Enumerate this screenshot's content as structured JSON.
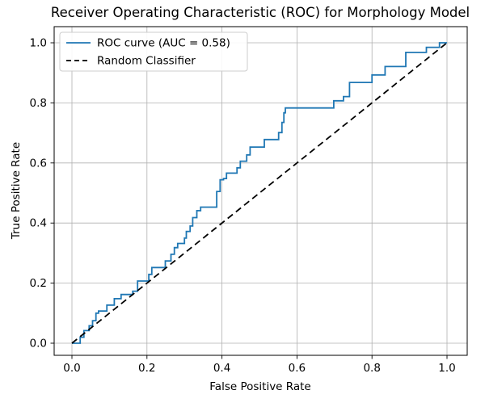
{
  "chart_data": {
    "type": "line",
    "title": "Receiver Operating Characteristic (ROC) for Morphology Model",
    "xlabel": "False Positive Rate",
    "ylabel": "True Positive Rate",
    "x_ticks": [
      "0.0",
      "0.2",
      "0.4",
      "0.6",
      "0.8",
      "1.0"
    ],
    "y_ticks": [
      "0.0",
      "0.2",
      "0.4",
      "0.6",
      "0.8",
      "1.0"
    ],
    "x_tick_values": [
      0.0,
      0.2,
      0.4,
      0.6,
      0.8,
      1.0
    ],
    "y_tick_values": [
      0.0,
      0.2,
      0.4,
      0.6,
      0.8,
      1.0
    ],
    "grid": true,
    "grid_color": "#b0b0b0",
    "auc": 0.58,
    "legend": {
      "position": "upper-left",
      "entries": [
        {
          "label": "ROC curve (AUC = 0.58)",
          "color": "#1f77b4",
          "style": "solid"
        },
        {
          "label": "Random Classifier",
          "color": "#000000",
          "style": "dashed"
        }
      ]
    },
    "series": [
      {
        "name": "ROC curve (AUC = 0.58)",
        "color": "#1f77b4",
        "style": "solid",
        "points": [
          [
            0.0,
            0.0
          ],
          [
            0.022,
            0.0
          ],
          [
            0.022,
            0.02
          ],
          [
            0.032,
            0.02
          ],
          [
            0.032,
            0.042
          ],
          [
            0.046,
            0.042
          ],
          [
            0.046,
            0.058
          ],
          [
            0.055,
            0.058
          ],
          [
            0.055,
            0.075
          ],
          [
            0.064,
            0.075
          ],
          [
            0.064,
            0.1
          ],
          [
            0.071,
            0.1
          ],
          [
            0.071,
            0.107
          ],
          [
            0.093,
            0.107
          ],
          [
            0.093,
            0.127
          ],
          [
            0.113,
            0.127
          ],
          [
            0.113,
            0.148
          ],
          [
            0.131,
            0.148
          ],
          [
            0.131,
            0.162
          ],
          [
            0.162,
            0.162
          ],
          [
            0.162,
            0.173
          ],
          [
            0.175,
            0.173
          ],
          [
            0.175,
            0.207
          ],
          [
            0.205,
            0.207
          ],
          [
            0.205,
            0.229
          ],
          [
            0.213,
            0.229
          ],
          [
            0.213,
            0.252
          ],
          [
            0.249,
            0.252
          ],
          [
            0.249,
            0.274
          ],
          [
            0.264,
            0.274
          ],
          [
            0.264,
            0.296
          ],
          [
            0.273,
            0.296
          ],
          [
            0.273,
            0.318
          ],
          [
            0.282,
            0.318
          ],
          [
            0.282,
            0.332
          ],
          [
            0.3,
            0.332
          ],
          [
            0.3,
            0.35
          ],
          [
            0.305,
            0.35
          ],
          [
            0.305,
            0.372
          ],
          [
            0.315,
            0.372
          ],
          [
            0.315,
            0.39
          ],
          [
            0.322,
            0.39
          ],
          [
            0.322,
            0.418
          ],
          [
            0.333,
            0.418
          ],
          [
            0.333,
            0.441
          ],
          [
            0.343,
            0.441
          ],
          [
            0.343,
            0.453
          ],
          [
            0.386,
            0.453
          ],
          [
            0.386,
            0.505
          ],
          [
            0.395,
            0.505
          ],
          [
            0.395,
            0.544
          ],
          [
            0.404,
            0.544
          ],
          [
            0.404,
            0.548
          ],
          [
            0.412,
            0.548
          ],
          [
            0.412,
            0.566
          ],
          [
            0.44,
            0.566
          ],
          [
            0.44,
            0.584
          ],
          [
            0.449,
            0.584
          ],
          [
            0.449,
            0.606
          ],
          [
            0.466,
            0.606
          ],
          [
            0.466,
            0.627
          ],
          [
            0.475,
            0.627
          ],
          [
            0.475,
            0.653
          ],
          [
            0.513,
            0.653
          ],
          [
            0.513,
            0.678
          ],
          [
            0.551,
            0.678
          ],
          [
            0.551,
            0.701
          ],
          [
            0.56,
            0.701
          ],
          [
            0.56,
            0.735
          ],
          [
            0.565,
            0.735
          ],
          [
            0.565,
            0.767
          ],
          [
            0.569,
            0.767
          ],
          [
            0.569,
            0.783
          ],
          [
            0.698,
            0.783
          ],
          [
            0.698,
            0.807
          ],
          [
            0.724,
            0.807
          ],
          [
            0.724,
            0.821
          ],
          [
            0.74,
            0.821
          ],
          [
            0.74,
            0.868
          ],
          [
            0.8,
            0.868
          ],
          [
            0.8,
            0.893
          ],
          [
            0.835,
            0.893
          ],
          [
            0.835,
            0.921
          ],
          [
            0.89,
            0.921
          ],
          [
            0.89,
            0.968
          ],
          [
            0.945,
            0.968
          ],
          [
            0.945,
            0.985
          ],
          [
            0.98,
            0.985
          ],
          [
            0.98,
            1.0
          ],
          [
            1.0,
            1.0
          ]
        ]
      },
      {
        "name": "Random Classifier",
        "color": "#000000",
        "style": "dashed",
        "points": [
          [
            0.0,
            0.0
          ],
          [
            1.0,
            1.0
          ]
        ]
      }
    ]
  },
  "colors": {
    "roc_line": "#1f77b4",
    "diagonal_line": "#000000",
    "grid": "#b0b0b0",
    "spine": "#000000",
    "legend_border": "#cccccc",
    "background": "#ffffff"
  }
}
